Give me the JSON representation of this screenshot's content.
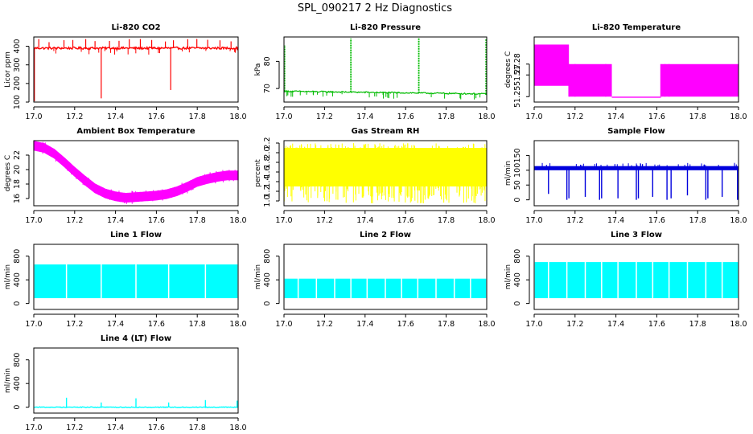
{
  "figure_title": "SPL_090217  2 Hz Diagnostics",
  "chart_data": [
    {
      "type": "line",
      "title": "Li-820 CO2",
      "ylabel": "Licor ppm",
      "color": "#ff0000",
      "xlim": [
        17.0,
        18.0
      ],
      "ylim": [
        100,
        450
      ],
      "x_ticks": [
        "17.0",
        "17.2",
        "17.4",
        "17.6",
        "17.8",
        "18.0"
      ],
      "y_ticks": [
        {
          "v": 100,
          "label": "100"
        },
        {
          "v": 200,
          "label": "200"
        },
        {
          "v": 300,
          "label": "300"
        },
        {
          "v": 400,
          "label": "400"
        }
      ],
      "series": [
        {
          "name": "CO2",
          "baseline": 390,
          "noise": 6,
          "spikes_up": 18,
          "up_size": 50,
          "dip_events": [
            [
              17.003,
              100
            ],
            [
              17.33,
              120
            ],
            [
              17.67,
              165
            ]
          ]
        }
      ]
    },
    {
      "type": "line",
      "title": "Li-820 Pressure",
      "ylabel": "kPa",
      "color": "#00bb00",
      "xlim": [
        17.0,
        18.0
      ],
      "ylim": [
        65,
        89
      ],
      "x_ticks": [
        "17.0",
        "17.2",
        "17.4",
        "17.6",
        "17.8",
        "18.0"
      ],
      "y_ticks": [
        {
          "v": 70,
          "label": "70"
        },
        {
          "v": 80,
          "label": "80"
        }
      ],
      "series": [
        {
          "name": "Pressure",
          "start": 69.0,
          "end": 68.0,
          "noise": 0.25,
          "spike_events": [
            [
              17.003,
              86.0
            ],
            [
              17.33,
              88.5
            ],
            [
              17.665,
              88.5
            ],
            [
              17.997,
              88.5
            ]
          ],
          "dips": 30,
          "dip_size": 1.5
        }
      ]
    },
    {
      "type": "line",
      "title": "Li-820 Temperature",
      "ylabel": "degrees C",
      "color": "#ff00ff",
      "xlim": [
        17.0,
        18.0
      ],
      "ylim": [
        51.245,
        51.305
      ],
      "x_ticks": [
        "17.0",
        "17.2",
        "17.4",
        "17.6",
        "17.8",
        "18.0"
      ],
      "y_ticks": [
        {
          "v": 51.25,
          "label": "51.25"
        },
        {
          "v": 51.27,
          "label": "51.27"
        },
        {
          "v": 51.28,
          "label": "51.28"
        }
      ],
      "series": [
        {
          "name": "Temperature",
          "segments": [
            [
              17.0,
              17.17,
              51.26,
              51.298
            ],
            [
              17.17,
              17.38,
              51.25,
              51.28
            ],
            [
              17.38,
              17.62,
              51.25,
              51.25
            ],
            [
              17.62,
              18.0,
              51.25,
              51.28
            ]
          ]
        }
      ]
    },
    {
      "type": "line",
      "title": "Ambient Box Temperature",
      "ylabel": "degrees C",
      "color": "#ff00ff",
      "xlim": [
        17.0,
        18.0
      ],
      "ylim": [
        15,
        24
      ],
      "x_ticks": [
        "17.0",
        "17.2",
        "17.4",
        "17.6",
        "17.8",
        "18.0"
      ],
      "y_ticks": [
        {
          "v": 16,
          "label": "16"
        },
        {
          "v": 18,
          "label": "18"
        },
        {
          "v": 20,
          "label": "20"
        },
        {
          "v": 22,
          "label": "22"
        }
      ],
      "series": [
        {
          "name": "Ambient",
          "points": [
            [
              17.0,
              23.3
            ],
            [
              17.05,
              23.0
            ],
            [
              17.1,
              22.2
            ],
            [
              17.15,
              21.0
            ],
            [
              17.2,
              19.7
            ],
            [
              17.25,
              18.5
            ],
            [
              17.3,
              17.4
            ],
            [
              17.35,
              16.7
            ],
            [
              17.4,
              16.3
            ],
            [
              17.45,
              16.1
            ],
            [
              17.5,
              16.2
            ],
            [
              17.55,
              16.3
            ],
            [
              17.6,
              16.4
            ],
            [
              17.65,
              16.6
            ],
            [
              17.7,
              17.0
            ],
            [
              17.75,
              17.6
            ],
            [
              17.8,
              18.3
            ],
            [
              17.85,
              18.7
            ],
            [
              17.9,
              19.0
            ],
            [
              17.95,
              19.2
            ],
            [
              18.0,
              19.2
            ]
          ],
          "band": 1.2
        }
      ]
    },
    {
      "type": "line",
      "title": "Gas Stream RH",
      "ylabel": "percent",
      "color": "#ffff00",
      "xlim": [
        17.0,
        18.0
      ],
      "ylim": [
        0.9,
        2.25
      ],
      "x_ticks": [
        "17.0",
        "17.2",
        "17.4",
        "17.6",
        "17.8",
        "18.0"
      ],
      "y_ticks": [
        {
          "v": 1.0,
          "label": "1.0"
        },
        {
          "v": 1.2,
          "label": "1.2"
        },
        {
          "v": 1.4,
          "label": "1.4"
        },
        {
          "v": 1.6,
          "label": "1.6"
        },
        {
          "v": 1.8,
          "label": "1.8"
        },
        {
          "v": 2.0,
          "label": "2.0"
        },
        {
          "v": 2.2,
          "label": "2.2"
        }
      ],
      "series": [
        {
          "name": "RH",
          "band_low": 1.3,
          "band_high": 2.1,
          "extreme_low": 0.95,
          "extreme_high": 2.2
        }
      ]
    },
    {
      "type": "line",
      "title": "Sample Flow",
      "ylabel": "ml/min",
      "color": "#0000dd",
      "xlim": [
        17.0,
        18.0
      ],
      "ylim": [
        -20,
        200
      ],
      "x_ticks": [
        "17.0",
        "17.2",
        "17.4",
        "17.6",
        "17.8",
        "18.0"
      ],
      "y_ticks": [
        {
          "v": 0,
          "label": "0"
        },
        {
          "v": 50,
          "label": "50"
        },
        {
          "v": 100,
          "label": "100"
        },
        {
          "v": 150,
          "label": "150"
        }
      ],
      "series": [
        {
          "name": "Sample",
          "baseline": 107,
          "noise": 7,
          "dip_events": [
            [
              17.07,
              20
            ],
            [
              17.16,
              0
            ],
            [
              17.17,
              5
            ],
            [
              17.25,
              10
            ],
            [
              17.32,
              0
            ],
            [
              17.33,
              5
            ],
            [
              17.41,
              5
            ],
            [
              17.5,
              0
            ],
            [
              17.51,
              5
            ],
            [
              17.58,
              10
            ],
            [
              17.65,
              0
            ],
            [
              17.67,
              5
            ],
            [
              17.75,
              15
            ],
            [
              17.84,
              0
            ],
            [
              17.85,
              5
            ],
            [
              17.92,
              10
            ],
            [
              17.995,
              0
            ]
          ]
        }
      ]
    },
    {
      "type": "line",
      "title": "Line 1 Flow",
      "ylabel": "ml/min",
      "color": "#00ffff",
      "xlim": [
        17.0,
        18.0
      ],
      "ylim": [
        -100,
        1000
      ],
      "x_ticks": [
        "17.0",
        "17.2",
        "17.4",
        "17.6",
        "17.8",
        "18.0"
      ],
      "y_ticks": [
        {
          "v": 0,
          "label": "0"
        },
        {
          "v": 400,
          "label": "400"
        },
        {
          "v": 800,
          "label": "800"
        }
      ],
      "series": [
        {
          "name": "Line 1",
          "low": 90,
          "high": 660,
          "gaps": [
            17.16,
            17.33,
            17.5,
            17.66,
            17.84
          ]
        }
      ]
    },
    {
      "type": "line",
      "title": "Line 2 Flow",
      "ylabel": "ml/min",
      "color": "#00ffff",
      "xlim": [
        17.0,
        18.0
      ],
      "ylim": [
        -100,
        1000
      ],
      "x_ticks": [
        "17.0",
        "17.2",
        "17.4",
        "17.6",
        "17.8",
        "18.0"
      ],
      "y_ticks": [
        {
          "v": 0,
          "label": "0"
        },
        {
          "v": 400,
          "label": "400"
        },
        {
          "v": 800,
          "label": "800"
        }
      ],
      "series": [
        {
          "name": "Line 2",
          "low": 90,
          "high": 420,
          "gaps": [
            17.07,
            17.16,
            17.25,
            17.33,
            17.41,
            17.5,
            17.58,
            17.66,
            17.75,
            17.84,
            17.92
          ]
        }
      ]
    },
    {
      "type": "line",
      "title": "Line 3 Flow",
      "ylabel": "ml/min",
      "color": "#00ffff",
      "xlim": [
        17.0,
        18.0
      ],
      "ylim": [
        -100,
        1000
      ],
      "x_ticks": [
        "17.0",
        "17.2",
        "17.4",
        "17.6",
        "17.8",
        "18.0"
      ],
      "y_ticks": [
        {
          "v": 0,
          "label": "0"
        },
        {
          "v": 400,
          "label": "400"
        },
        {
          "v": 800,
          "label": "800"
        }
      ],
      "series": [
        {
          "name": "Line 3",
          "low": 90,
          "high": 700,
          "gaps": [
            17.07,
            17.16,
            17.25,
            17.33,
            17.41,
            17.5,
            17.58,
            17.66,
            17.75,
            17.84,
            17.92
          ]
        }
      ]
    },
    {
      "type": "line",
      "title": "Line 4 (LT) Flow",
      "ylabel": "ml/min",
      "color": "#00ffff",
      "xlim": [
        17.0,
        18.0
      ],
      "ylim": [
        -100,
        1000
      ],
      "x_ticks": [
        "17.0",
        "17.2",
        "17.4",
        "17.6",
        "17.8",
        "18.0"
      ],
      "y_ticks": [
        {
          "v": 0,
          "label": "0"
        },
        {
          "v": 400,
          "label": "400"
        },
        {
          "v": 800,
          "label": "800"
        }
      ],
      "series": [
        {
          "name": "Line 4",
          "baseline": 0,
          "spike_events": [
            [
              17.16,
              160
            ],
            [
              17.33,
              80
            ],
            [
              17.5,
              150
            ],
            [
              17.66,
              80
            ],
            [
              17.84,
              120
            ],
            [
              17.995,
              110
            ]
          ]
        }
      ]
    }
  ]
}
